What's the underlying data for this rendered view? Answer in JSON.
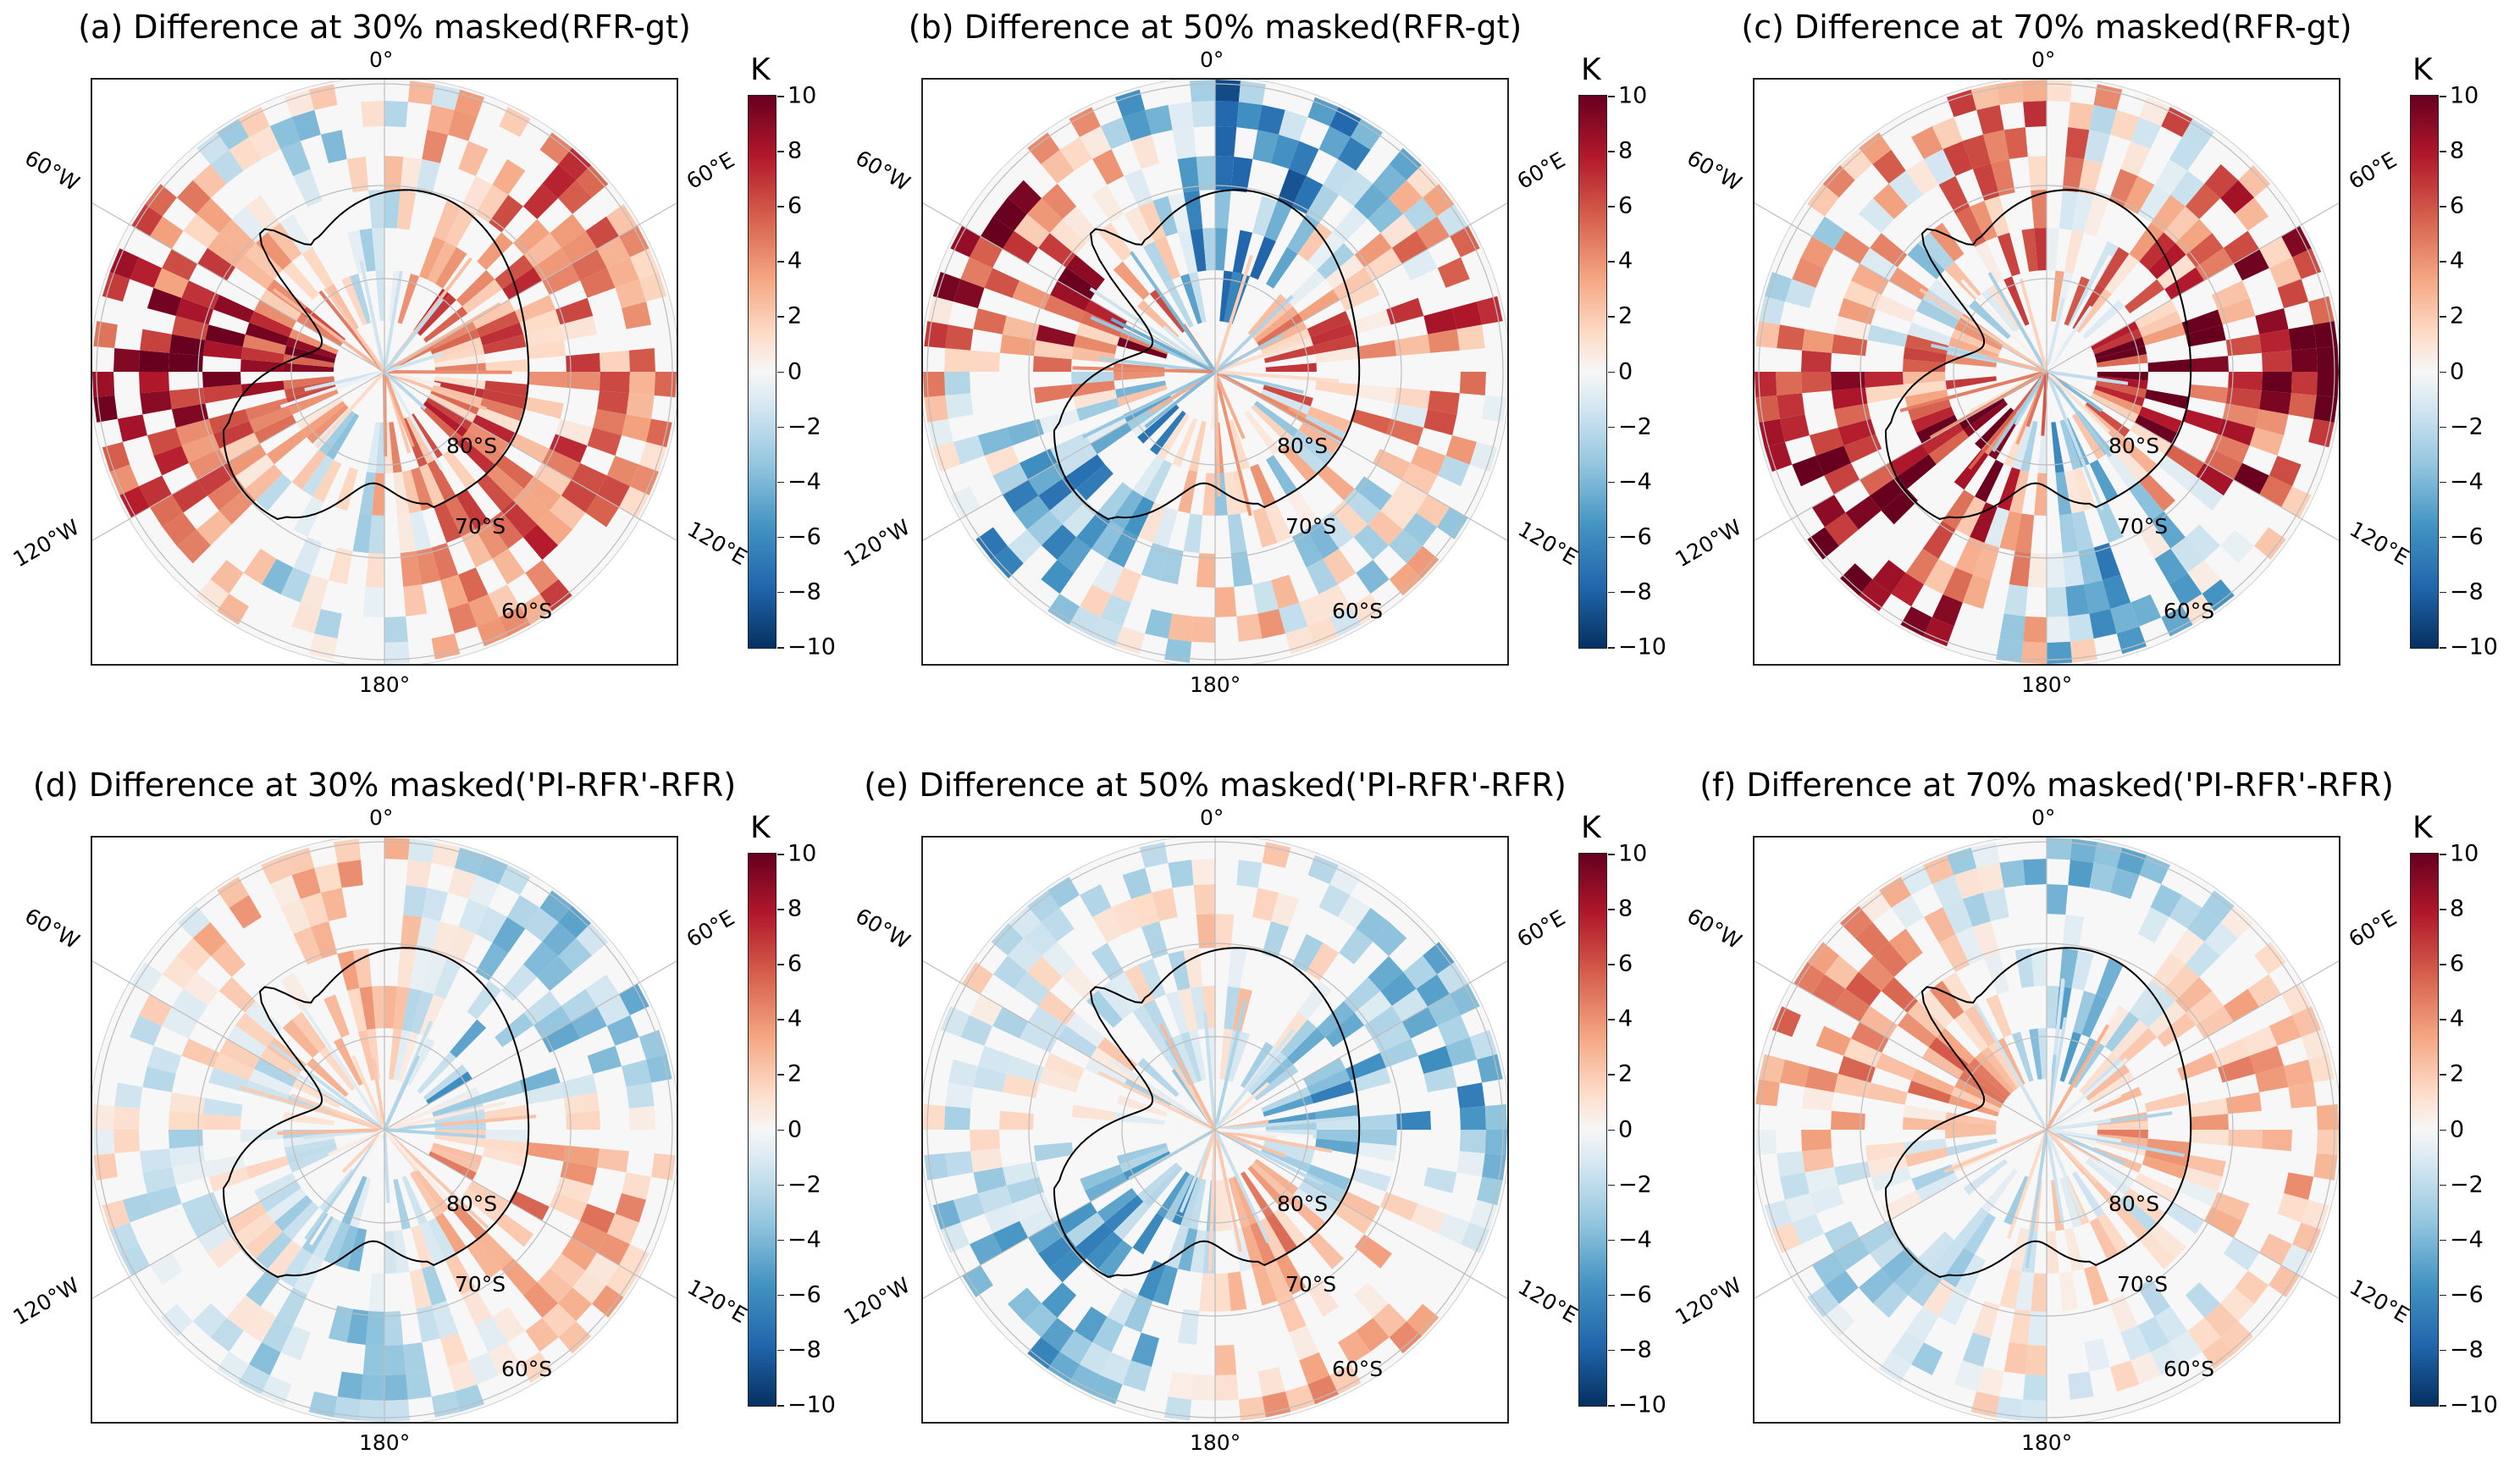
{
  "figure": {
    "colorbar": {
      "unit": "K",
      "ticks": [
        "10",
        "8",
        "6",
        "4",
        "2",
        "0",
        "−2",
        "−4",
        "−6",
        "−8",
        "−10"
      ]
    },
    "lon_labels": {
      "top": "0°",
      "bottom": "180°",
      "left_upper": "60°W",
      "right_upper": "60°E",
      "left_lower": "120°W",
      "right_lower": "120°E"
    },
    "lat_labels": [
      "80°S",
      "70°S",
      "60°S"
    ],
    "panels": [
      {
        "title": "(a) Difference at 30% masked(RFR-gt)",
        "intensity": 0.55,
        "bias": 0.55,
        "seed": 11
      },
      {
        "title": "(b) Difference at 50% masked(RFR-gt)",
        "intensity": 0.7,
        "bias": 0.05,
        "seed": 23
      },
      {
        "title": "(c) Difference at 70% masked(RFR-gt)",
        "intensity": 0.8,
        "bias": 0.45,
        "seed": 37
      },
      {
        "title": "(d) Difference at 30% masked('PI-RFR'-RFR)",
        "intensity": 0.4,
        "bias": -0.05,
        "seed": 41
      },
      {
        "title": "(e) Difference at 50% masked('PI-RFR'-RFR)",
        "intensity": 0.45,
        "bias": -0.25,
        "seed": 53
      },
      {
        "title": "(f) Difference at 70% masked('PI-RFR'-RFR)",
        "intensity": 0.4,
        "bias": 0.1,
        "seed": 67
      }
    ]
  }
}
